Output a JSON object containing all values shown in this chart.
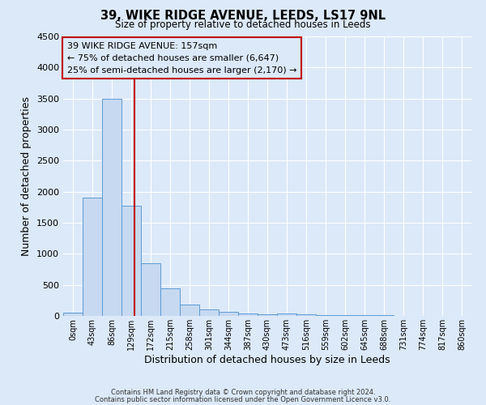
{
  "title": "39, WIKE RIDGE AVENUE, LEEDS, LS17 9NL",
  "subtitle": "Size of property relative to detached houses in Leeds",
  "xlabel": "Distribution of detached houses by size in Leeds",
  "ylabel": "Number of detached properties",
  "bar_labels": [
    "0sqm",
    "43sqm",
    "86sqm",
    "129sqm",
    "172sqm",
    "215sqm",
    "258sqm",
    "301sqm",
    "344sqm",
    "387sqm",
    "430sqm",
    "473sqm",
    "516sqm",
    "559sqm",
    "602sqm",
    "645sqm",
    "688sqm",
    "731sqm",
    "774sqm",
    "817sqm",
    "860sqm"
  ],
  "bar_values": [
    50,
    1900,
    3500,
    1780,
    850,
    450,
    180,
    100,
    60,
    40,
    30,
    40,
    20,
    15,
    12,
    10,
    8,
    6,
    5,
    4,
    3
  ],
  "bar_color": "#c6d9f1",
  "bar_edgecolor": "#5b9bd5",
  "vline_color": "#c00000",
  "ylim": [
    0,
    4500
  ],
  "yticks": [
    0,
    500,
    1000,
    1500,
    2000,
    2500,
    3000,
    3500,
    4000,
    4500
  ],
  "annotation_title": "39 WIKE RIDGE AVENUE: 157sqm",
  "annotation_line1": "← 75% of detached houses are smaller (6,647)",
  "annotation_line2": "25% of semi-detached houses are larger (2,170) →",
  "annotation_box_color": "#c00000",
  "footer_line1": "Contains HM Land Registry data © Crown copyright and database right 2024.",
  "footer_line2": "Contains public sector information licensed under the Open Government Licence v3.0.",
  "bg_color": "#dce9f8",
  "grid_color": "#ffffff"
}
